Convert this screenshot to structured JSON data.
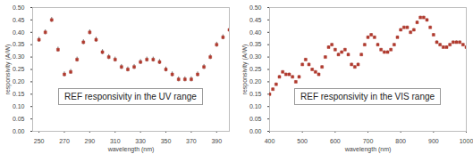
{
  "chart_data": [
    {
      "type": "scatter",
      "annotation": "REF responsivity in the UV range",
      "xlabel": "wavelength (nm)",
      "ylabel": "responsivity (A/W)",
      "x": [
        250,
        255,
        260,
        265,
        270,
        275,
        280,
        285,
        290,
        295,
        300,
        305,
        310,
        315,
        320,
        325,
        330,
        335,
        340,
        345,
        350,
        355,
        360,
        365,
        370,
        375,
        380,
        385,
        390,
        395,
        400
      ],
      "values": [
        0.37,
        0.4,
        0.45,
        0.33,
        0.23,
        0.24,
        0.29,
        0.36,
        0.4,
        0.37,
        0.32,
        0.3,
        0.29,
        0.26,
        0.25,
        0.26,
        0.28,
        0.29,
        0.29,
        0.28,
        0.25,
        0.23,
        0.21,
        0.21,
        0.21,
        0.23,
        0.26,
        0.3,
        0.35,
        0.38,
        0.41
      ],
      "errors": [
        0.01,
        0.01,
        0.01,
        0.01,
        0.01,
        0.01,
        0.01,
        0.01,
        0.01,
        0.01,
        0.01,
        0.01,
        0.01,
        0.01,
        0.01,
        0.01,
        0.01,
        0.01,
        0.01,
        0.01,
        0.01,
        0.01,
        0.01,
        0.01,
        0.01,
        0.01,
        0.01,
        0.01,
        0.01,
        0.01,
        0.01
      ],
      "color": "#b03a2e",
      "marker": "square",
      "xlim": [
        245,
        400
      ],
      "xticks": [
        250,
        270,
        290,
        310,
        330,
        350,
        370,
        390
      ],
      "ylim": [
        0,
        0.5
      ],
      "yticks": [
        {
          "value": 0,
          "label": "0.00"
        },
        {
          "value": 0.05,
          "label": "0.05"
        },
        {
          "value": 0.1,
          "label": "0.10"
        },
        {
          "value": 0.15,
          "label": "0.15"
        },
        {
          "value": 0.2,
          "label": "0.20"
        },
        {
          "value": 0.25,
          "label": "0.25"
        },
        {
          "value": 0.3,
          "label": "0.30"
        },
        {
          "value": 0.35,
          "label": "0.35"
        },
        {
          "value": 0.4,
          "label": "0.40"
        },
        {
          "value": 0.45,
          "label": "0.45"
        },
        {
          "value": 0.5,
          "label": "0.50"
        }
      ],
      "grid": false
    },
    {
      "type": "scatter",
      "annotation": "REF responsivity in the VIS range",
      "xlabel": "wavelength (nm)",
      "ylabel": "responsivity (A/W)",
      "x": [
        400,
        410,
        420,
        430,
        440,
        450,
        460,
        470,
        480,
        490,
        500,
        510,
        520,
        530,
        540,
        550,
        560,
        570,
        580,
        590,
        600,
        610,
        620,
        630,
        640,
        650,
        660,
        670,
        680,
        690,
        700,
        710,
        720,
        730,
        740,
        750,
        760,
        770,
        780,
        790,
        800,
        810,
        820,
        830,
        840,
        850,
        860,
        870,
        880,
        890,
        900,
        910,
        920,
        930,
        940,
        950,
        960,
        970,
        980,
        990,
        1000
      ],
      "values": [
        0.15,
        0.17,
        0.19,
        0.22,
        0.24,
        0.23,
        0.23,
        0.22,
        0.2,
        0.22,
        0.27,
        0.29,
        0.27,
        0.25,
        0.24,
        0.23,
        0.26,
        0.3,
        0.34,
        0.35,
        0.33,
        0.31,
        0.32,
        0.33,
        0.31,
        0.27,
        0.26,
        0.27,
        0.31,
        0.35,
        0.38,
        0.39,
        0.38,
        0.35,
        0.33,
        0.32,
        0.32,
        0.33,
        0.35,
        0.38,
        0.41,
        0.42,
        0.42,
        0.4,
        0.41,
        0.44,
        0.46,
        0.46,
        0.45,
        0.42,
        0.39,
        0.36,
        0.35,
        0.34,
        0.34,
        0.35,
        0.36,
        0.36,
        0.36,
        0.35,
        0.34
      ],
      "errors": [
        0.005,
        0.005,
        0.005,
        0.005,
        0.005,
        0.005,
        0.005,
        0.005,
        0.005,
        0.005,
        0.005,
        0.005,
        0.005,
        0.005,
        0.005,
        0.005,
        0.005,
        0.005,
        0.005,
        0.005,
        0.005,
        0.005,
        0.005,
        0.005,
        0.005,
        0.005,
        0.005,
        0.005,
        0.005,
        0.005,
        0.005,
        0.005,
        0.005,
        0.005,
        0.005,
        0.005,
        0.005,
        0.005,
        0.005,
        0.005,
        0.005,
        0.005,
        0.005,
        0.005,
        0.005,
        0.005,
        0.005,
        0.005,
        0.005,
        0.005,
        0.005,
        0.005,
        0.005,
        0.005,
        0.005,
        0.005,
        0.005,
        0.005,
        0.005,
        0.005,
        0.005
      ],
      "color": "#b03a2e",
      "marker": "square",
      "xlim": [
        400,
        1000
      ],
      "xticks": [
        400,
        500,
        600,
        700,
        800,
        900,
        1000
      ],
      "ylim": [
        0,
        0.5
      ],
      "yticks": [
        {
          "value": 0,
          "label": "0.00"
        },
        {
          "value": 0.05,
          "label": "0.05"
        },
        {
          "value": 0.1,
          "label": "0.10"
        },
        {
          "value": 0.15,
          "label": "0.15"
        },
        {
          "value": 0.2,
          "label": "0.20"
        },
        {
          "value": 0.25,
          "label": "0.25"
        },
        {
          "value": 0.3,
          "label": "0.30"
        },
        {
          "value": 0.35,
          "label": "0.35"
        },
        {
          "value": 0.4,
          "label": "0.40"
        },
        {
          "value": 0.45,
          "label": "0.45"
        },
        {
          "value": 0.5,
          "label": "0.50"
        }
      ],
      "grid": false
    }
  ]
}
